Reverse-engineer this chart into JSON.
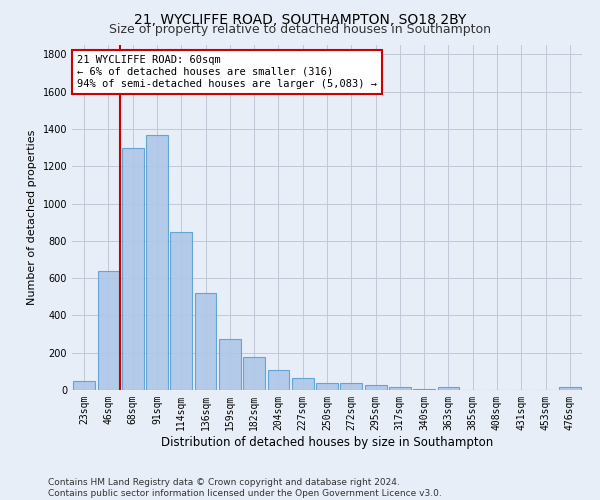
{
  "title": "21, WYCLIFFE ROAD, SOUTHAMPTON, SO18 2BY",
  "subtitle": "Size of property relative to detached houses in Southampton",
  "xlabel": "Distribution of detached houses by size in Southampton",
  "ylabel": "Number of detached properties",
  "categories": [
    "23sqm",
    "46sqm",
    "68sqm",
    "91sqm",
    "114sqm",
    "136sqm",
    "159sqm",
    "182sqm",
    "204sqm",
    "227sqm",
    "250sqm",
    "272sqm",
    "295sqm",
    "317sqm",
    "340sqm",
    "363sqm",
    "385sqm",
    "408sqm",
    "431sqm",
    "453sqm",
    "476sqm"
  ],
  "values": [
    50,
    640,
    1300,
    1370,
    845,
    520,
    275,
    175,
    105,
    65,
    40,
    38,
    28,
    18,
    5,
    15,
    0,
    0,
    0,
    0,
    15
  ],
  "bar_color": "#aec6e8",
  "bar_edge_color": "#5a9fd4",
  "vline_color": "#cc0000",
  "annotation_text": "21 WYCLIFFE ROAD: 60sqm\n← 6% of detached houses are smaller (316)\n94% of semi-detached houses are larger (5,083) →",
  "annotation_box_color": "#cc0000",
  "ylim": [
    0,
    1850
  ],
  "yticks": [
    0,
    200,
    400,
    600,
    800,
    1000,
    1200,
    1400,
    1600,
    1800
  ],
  "bg_color": "#e8eef8",
  "plot_bg_color": "#e8eef8",
  "grid_color": "#c0c8d8",
  "footer_line1": "Contains HM Land Registry data © Crown copyright and database right 2024.",
  "footer_line2": "Contains public sector information licensed under the Open Government Licence v3.0.",
  "title_fontsize": 10,
  "subtitle_fontsize": 9,
  "xlabel_fontsize": 8.5,
  "ylabel_fontsize": 8,
  "tick_fontsize": 7,
  "footer_fontsize": 6.5,
  "annotation_fontsize": 7.5
}
